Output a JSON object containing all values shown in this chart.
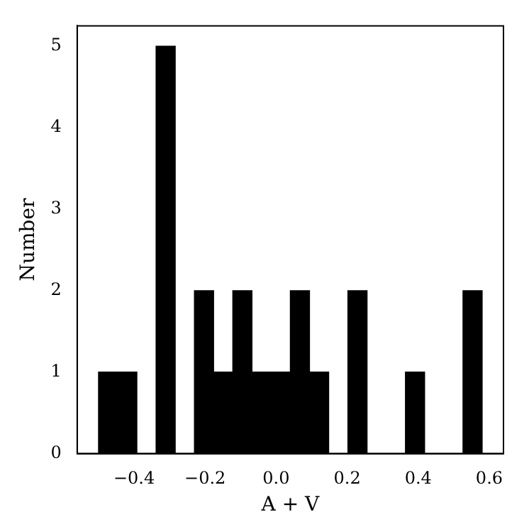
{
  "chart_data": {
    "type": "histogram",
    "xlabel": "A + V",
    "ylabel": "Number",
    "bins": [
      -0.5,
      -0.446,
      -0.392,
      -0.338,
      -0.284,
      -0.23,
      -0.176,
      -0.122,
      -0.068,
      -0.014,
      0.04,
      0.094,
      0.148,
      0.202,
      0.256,
      0.31,
      0.364,
      0.418,
      0.472,
      0.526,
      0.58
    ],
    "values": [
      1,
      1,
      0,
      5,
      0,
      2,
      1,
      2,
      1,
      1,
      2,
      1,
      0,
      2,
      0,
      0,
      1,
      0,
      0,
      2
    ],
    "color": "#000000",
    "xlim": [
      -0.56,
      0.64
    ],
    "xticks": [
      {
        "value": -0.4,
        "label": "−0.4"
      },
      {
        "value": -0.2,
        "label": "−0.2"
      },
      {
        "value": 0,
        "label": "0.0"
      },
      {
        "value": 0.2,
        "label": "0.2"
      },
      {
        "value": 0.4,
        "label": "0.4"
      },
      {
        "value": 0.6,
        "label": "0.6"
      }
    ],
    "ylim": [
      0,
      5.25
    ],
    "yticks": [
      0,
      1,
      2,
      3,
      4,
      5
    ],
    "grid": false,
    "legend": false
  }
}
